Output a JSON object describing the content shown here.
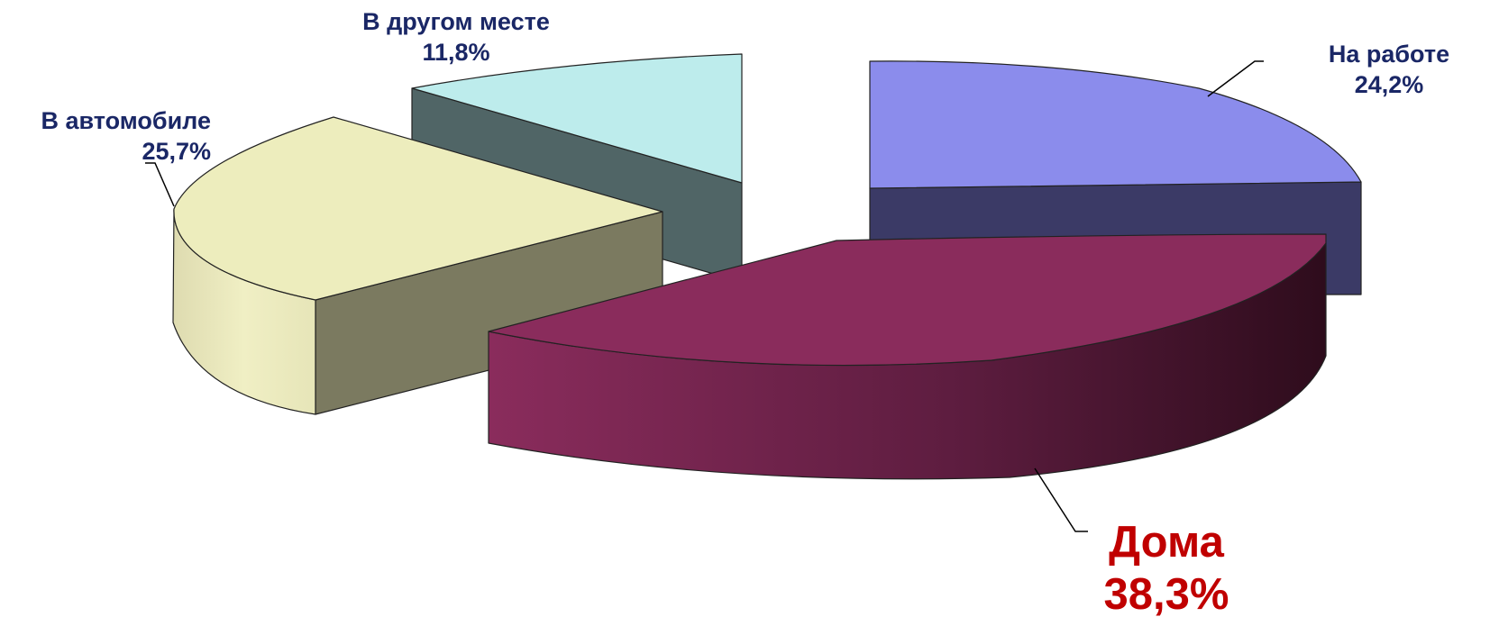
{
  "chart_data": {
    "type": "pie",
    "style": "3d-exploded",
    "title": "",
    "slices": [
      {
        "label": "На работе",
        "value": 24.2,
        "value_text": "24,2%",
        "color_top": "#8b8cec",
        "color_side": "#3b3a66"
      },
      {
        "label": "Дома",
        "value": 38.3,
        "value_text": "38,3%",
        "color_top": "#8a2c5c",
        "color_side": "#5e1d40"
      },
      {
        "label": "В автомобиле",
        "value": 25.7,
        "value_text": "25,7%",
        "color_top": "#ededbd",
        "color_side": "#7b7a60"
      },
      {
        "label": "В другом месте",
        "value": 11.8,
        "value_text": "11,8%",
        "color_top": "#bdecec",
        "color_side": "#506566"
      }
    ],
    "label_colors": {
      "default": "#1a2766",
      "highlight": "#c00000"
    },
    "legend": "none"
  }
}
